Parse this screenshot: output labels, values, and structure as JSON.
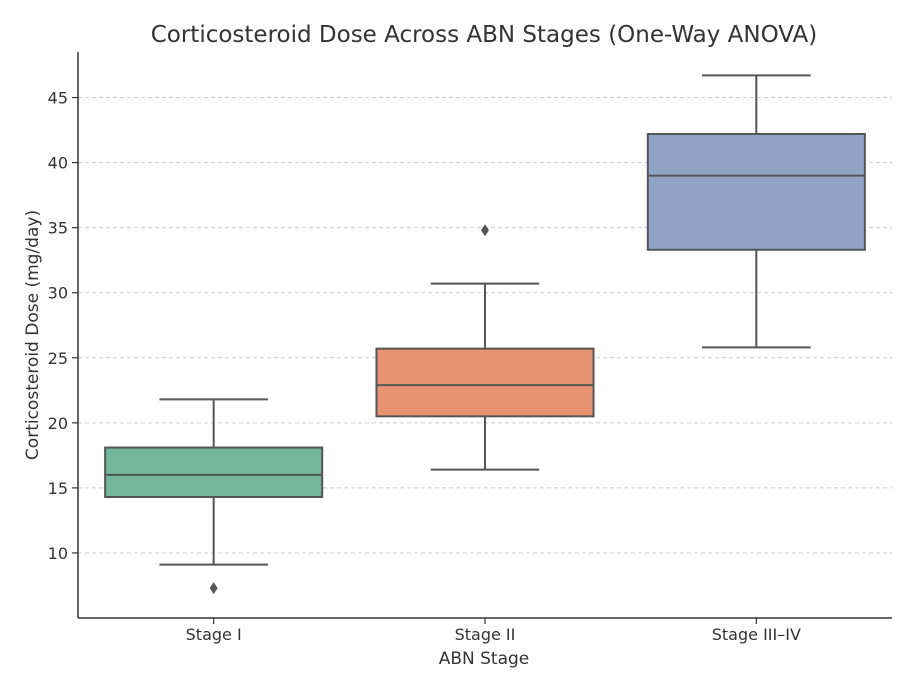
{
  "chart_data": {
    "type": "box",
    "title": "Corticosteroid Dose Across ABN Stages (One-Way ANOVA)",
    "xlabel": "ABN Stage",
    "ylabel": "Corticosteroid Dose (mg/day)",
    "ylim": [
      5.0,
      48.5
    ],
    "yticks": [
      10,
      15,
      20,
      25,
      30,
      35,
      40,
      45
    ],
    "grid": "horizontal-dashed",
    "categories": [
      "Stage I",
      "Stage II",
      "Stage III–IV"
    ],
    "boxes": [
      {
        "category": "Stage I",
        "whisker_low": 9.1,
        "q1": 14.3,
        "median": 16.0,
        "q3": 18.1,
        "whisker_high": 21.8,
        "outliers": [
          7.3
        ],
        "color": "#72b69d"
      },
      {
        "category": "Stage II",
        "whisker_low": 16.4,
        "q1": 20.5,
        "median": 22.9,
        "q3": 25.7,
        "whisker_high": 30.7,
        "outliers": [
          34.8
        ],
        "color": "#e89472"
      },
      {
        "category": "Stage III–IV",
        "whisker_low": 25.8,
        "q1": 33.3,
        "median": 39.0,
        "q3": 42.2,
        "whisker_high": 46.7,
        "outliers": [],
        "color": "#90a2c6"
      }
    ]
  }
}
